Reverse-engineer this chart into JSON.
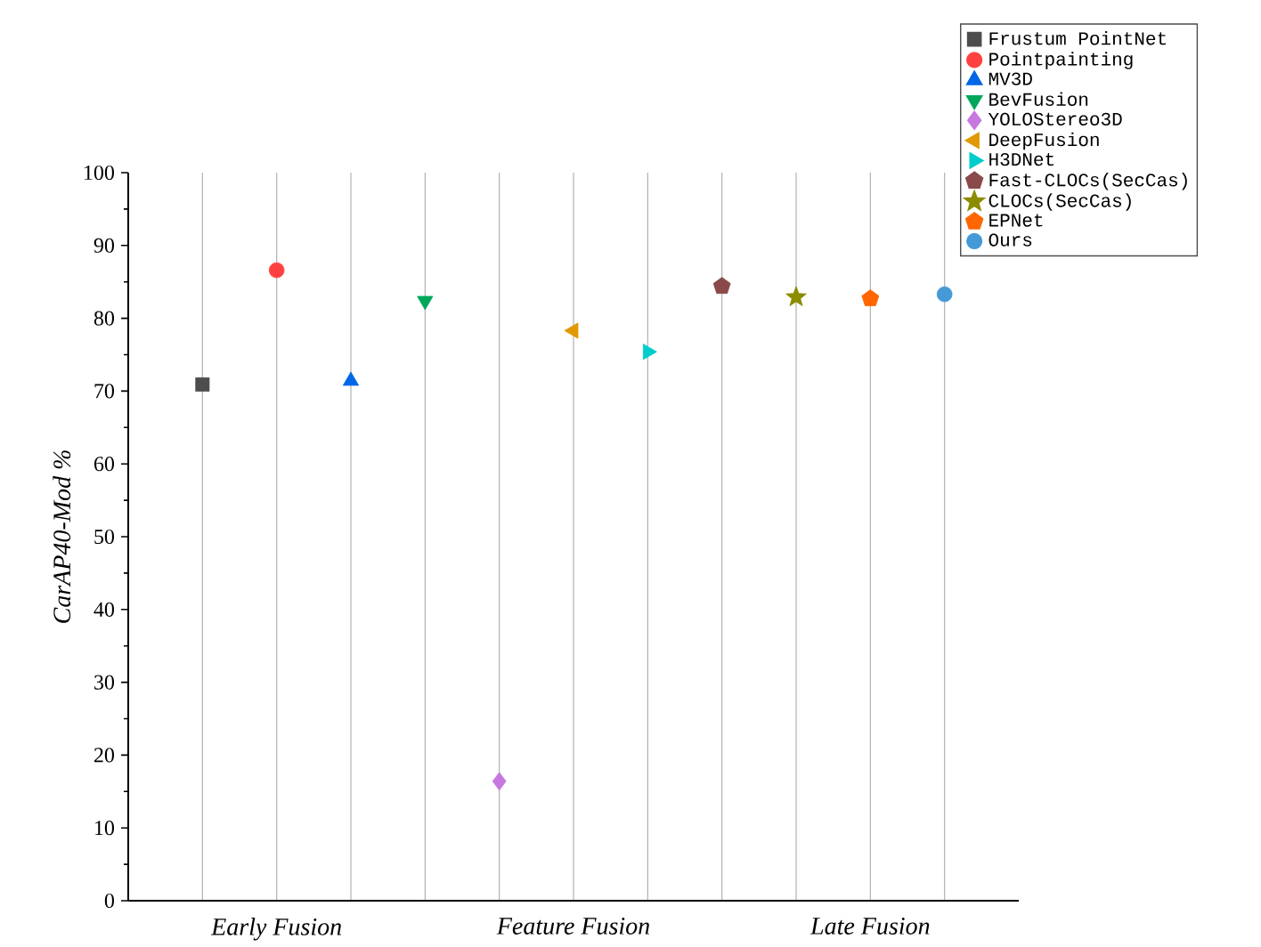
{
  "chart_data": {
    "type": "scatter",
    "ylabel": "CarAP40-Mod %",
    "categories": [
      null,
      "Early Fusion",
      null,
      null,
      null,
      "Feature Fusion",
      null,
      null,
      null,
      "Late Fusion",
      null
    ],
    "ylim": [
      0,
      100
    ],
    "yticks": [
      0,
      10,
      20,
      30,
      40,
      50,
      60,
      70,
      80,
      90,
      100
    ],
    "grid": "x",
    "legend": "top right",
    "series": [
      {
        "name": "Frustum PointNet",
        "color": "#4d4d4d",
        "marker": "square",
        "values": [
          70.9,
          null,
          null,
          null,
          null,
          null,
          null,
          null,
          null,
          null,
          null
        ]
      },
      {
        "name": "Pointpainting",
        "color": "#ff4040",
        "marker": "circle",
        "values": [
          null,
          86.6,
          null,
          null,
          null,
          null,
          null,
          null,
          null,
          null,
          null
        ]
      },
      {
        "name": "MV3D",
        "color": "#0066e6",
        "marker": "triangle",
        "values": [
          null,
          null,
          71.4,
          null,
          null,
          null,
          null,
          null,
          null,
          null,
          null
        ]
      },
      {
        "name": "BevFusion",
        "color": "#00a65a",
        "marker": "triangle-down",
        "values": [
          null,
          null,
          null,
          82.4,
          null,
          null,
          null,
          null,
          null,
          null,
          null
        ]
      },
      {
        "name": "YOLOStereo3D",
        "color": "#c678e0",
        "marker": "diamond",
        "values": [
          null,
          null,
          null,
          null,
          16.4,
          null,
          null,
          null,
          null,
          null,
          null
        ]
      },
      {
        "name": "DeepFusion",
        "color": "#e09900",
        "marker": "triangle-left",
        "values": [
          null,
          null,
          null,
          null,
          null,
          78.3,
          null,
          null,
          null,
          null,
          null
        ]
      },
      {
        "name": "H3DNet",
        "color": "#00cccc",
        "marker": "triangle-right",
        "values": [
          null,
          null,
          null,
          null,
          null,
          null,
          75.4,
          null,
          null,
          null,
          null
        ]
      },
      {
        "name": "Fast-CLOCs(SecCas)",
        "color": "#8b4a4a",
        "values": [
          null,
          null,
          null,
          null,
          null,
          null,
          null,
          84.4,
          null,
          null,
          null
        ]
      },
      {
        "name": "CLOCs(SecCas)",
        "color": "#8c8c00",
        "marker": "star",
        "values": [
          null,
          null,
          null,
          null,
          null,
          null,
          null,
          null,
          82.9,
          null,
          null
        ]
      },
      {
        "name": "EPNet",
        "color": "#ff6600",
        "values": [
          null,
          null,
          null,
          null,
          null,
          null,
          null,
          null,
          null,
          82.7,
          null
        ]
      },
      {
        "name": "Ours",
        "color": "#4499d6",
        "marker": "circle",
        "values": [
          null,
          null,
          null,
          null,
          null,
          null,
          null,
          null,
          null,
          null,
          83.3
        ]
      }
    ]
  }
}
